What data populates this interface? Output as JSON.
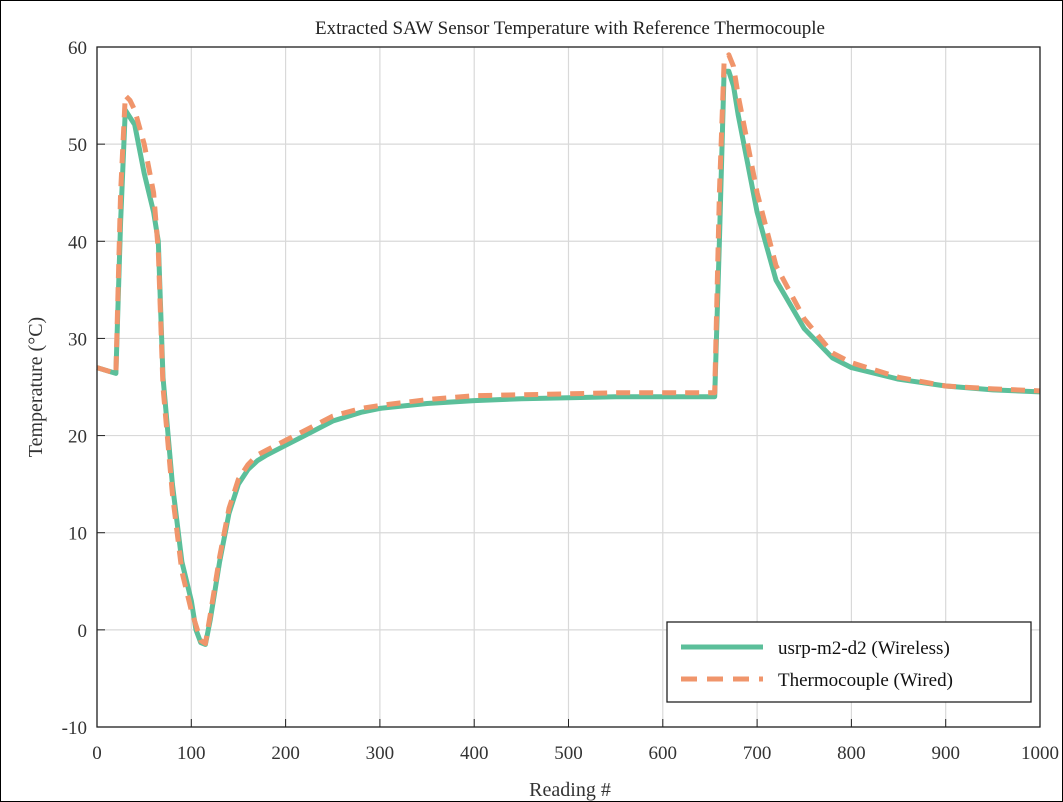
{
  "chart_data": {
    "type": "line",
    "title": "Extracted SAW Sensor Temperature with Reference Thermocouple",
    "xlabel": "Reading #",
    "ylabel": "Temperature (°C)",
    "xlim": [
      0,
      1000
    ],
    "ylim": [
      -10,
      60
    ],
    "xticks": [
      "0",
      "100",
      "200",
      "300",
      "400",
      "500",
      "600",
      "700",
      "800",
      "900",
      "1000"
    ],
    "yticks": [
      "-10",
      "0",
      "10",
      "20",
      "30",
      "40",
      "50",
      "60"
    ],
    "grid": true,
    "legend_position": "bottom-right",
    "series": [
      {
        "name": "usrp-m2-d2 (Wireless)",
        "color": "#5bbf9a",
        "style": "solid",
        "x": [
          0,
          10,
          20,
          25,
          30,
          40,
          50,
          60,
          65,
          70,
          80,
          90,
          100,
          105,
          110,
          115,
          120,
          130,
          140,
          150,
          160,
          170,
          180,
          200,
          220,
          250,
          280,
          300,
          350,
          400,
          450,
          500,
          550,
          600,
          655,
          660,
          665,
          670,
          675,
          680,
          690,
          700,
          720,
          750,
          780,
          800,
          850,
          900,
          950,
          1000
        ],
        "y": [
          27,
          26.7,
          26.4,
          42,
          53.5,
          52,
          47,
          43,
          40,
          26,
          15,
          7,
          3,
          0,
          -1.3,
          -1.5,
          1,
          7,
          12,
          15,
          16.5,
          17.4,
          18,
          19,
          20,
          21.5,
          22.4,
          22.8,
          23.3,
          23.6,
          23.8,
          23.9,
          24,
          24,
          24,
          40,
          57.5,
          57.5,
          56,
          53,
          48,
          43,
          36,
          31,
          28,
          27,
          25.8,
          25.1,
          24.7,
          24.5
        ]
      },
      {
        "name": "Thermocouple (Wired)",
        "color": "#f0956b",
        "style": "dashed",
        "x": [
          0,
          10,
          20,
          25,
          30,
          35,
          40,
          50,
          60,
          65,
          70,
          80,
          90,
          100,
          110,
          115,
          120,
          130,
          140,
          150,
          160,
          170,
          180,
          200,
          220,
          250,
          280,
          300,
          350,
          400,
          450,
          500,
          550,
          600,
          655,
          660,
          665,
          670,
          675,
          680,
          690,
          700,
          720,
          750,
          780,
          800,
          850,
          900,
          950,
          1000
        ],
        "y": [
          27,
          26.7,
          26.4,
          45,
          55,
          54.5,
          53.5,
          50,
          45,
          39,
          25,
          14,
          6,
          2,
          -1.1,
          -1.4,
          1.5,
          7.5,
          12.5,
          15.5,
          17,
          18,
          18.5,
          19.5,
          20.5,
          22,
          22.8,
          23.1,
          23.7,
          24.1,
          24.2,
          24.3,
          24.4,
          24.4,
          24.4,
          45,
          58.5,
          59.2,
          58,
          55,
          50,
          45,
          37.5,
          32,
          28.5,
          27.5,
          26,
          25.1,
          24.8,
          24.6
        ]
      }
    ]
  }
}
